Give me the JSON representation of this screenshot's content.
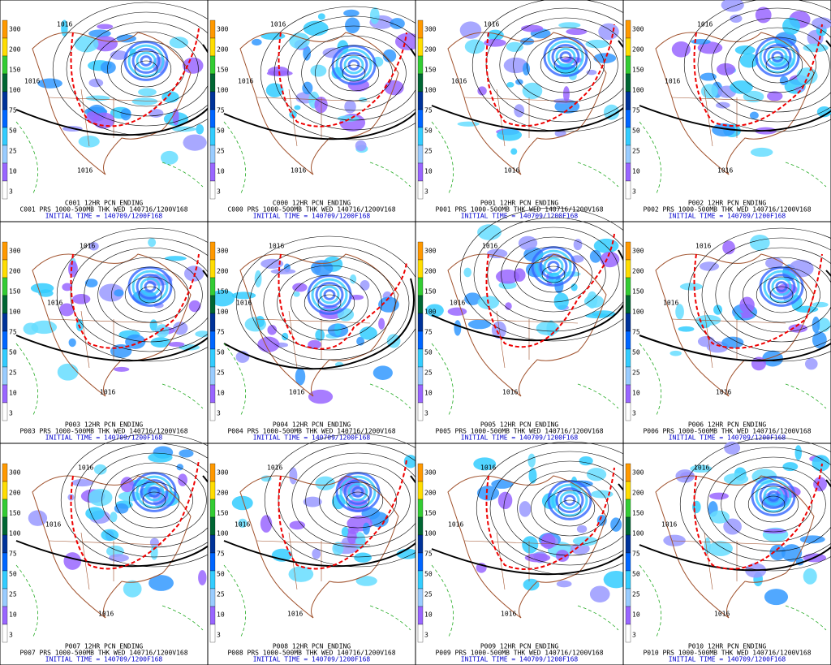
{
  "colorbar_labels": [
    "300",
    "200",
    "150",
    "100",
    "75",
    "50",
    "25",
    "10",
    "3"
  ],
  "panels": [
    {
      "title": "C001 12HR PCN ENDING",
      "line1": "C001 PRS 1000-500MB THK WED 140716/1200V168",
      "line2": "INITIAL TIME = 140709/1200F168",
      "labels": [
        "1016",
        "1016",
        "1016"
      ]
    },
    {
      "title": "C000 12HR PCN ENDING",
      "line1": "C000 PRS 1000-500MB THK WED 140716/1200V168",
      "line2": "INITIAL TIME = 140709/1200F168",
      "labels": [
        "1016",
        "1016",
        "1016"
      ]
    },
    {
      "title": "P001 12HR PCN ENDING",
      "line1": "P001 PRS 1000-500MB THK WED 140716/1200V168",
      "line2": "INITIAL TIME = 140709/1200F168",
      "labels": [
        "1016",
        "1016",
        "1016"
      ]
    },
    {
      "title": "P002 12HR PCN ENDING",
      "line1": "P002 PRS 1000-500MB THK WED 140716/1200V168",
      "line2": "INITIAL TIME = 140709/1200F168",
      "labels": [
        "1016",
        "1016",
        "1016"
      ]
    },
    {
      "title": "P003 12HR PCN ENDING",
      "line1": "P003 PRS 1000-500MB THK WED 140716/1200V168",
      "line2": "INITIAL TIME = 140709/1200F168",
      "labels": [
        "1016",
        "1016",
        "1016"
      ]
    },
    {
      "title": "P004 12HR PCN ENDING",
      "line1": "P004 PRS 1000-500MB THK WED 140716/1200V168",
      "line2": "INITIAL TIME = 140709/1200F168",
      "labels": [
        "1016",
        "1016",
        "1016"
      ]
    },
    {
      "title": "P005 12HR PCN ENDING",
      "line1": "P005 PRS 1000-500MB THK WED 140716/1200V168",
      "line2": "INITIAL TIME = 140709/1200F168",
      "labels": [
        "1016",
        "1016",
        "1016"
      ]
    },
    {
      "title": "P006 12HR PCN ENDING",
      "line1": "P006 PRS 1000-500MB THK WED 140716/1200V168",
      "line2": "INITIAL TIME = 140709/1200F168",
      "labels": [
        "1016",
        "1016",
        "1016"
      ]
    },
    {
      "title": "P007 12HR PCN ENDING",
      "line1": "P007 PRS 1000-500MB THK WED 140716/1200V168",
      "line2": "INITIAL TIME = 140709/1200F168",
      "labels": [
        "1016",
        "1016",
        "1016"
      ]
    },
    {
      "title": "P008 12HR PCN ENDING",
      "line1": "P008 PRS 1000-500MB THK WED 140716/1200V168",
      "line2": "INITIAL TIME = 140709/1200F168",
      "labels": [
        "1016",
        "1016",
        "1016"
      ]
    },
    {
      "title": "P009 12HR PCN ENDING",
      "line1": "P009 PRS 1000-500MB THK WED 140716/1200V168",
      "line2": "INITIAL TIME = 140709/1200F168",
      "labels": [
        "1016",
        "1016",
        "1016"
      ]
    },
    {
      "title": "P010 12HR PCN ENDING",
      "line1": "P010 PRS 1000-500MB THK WED 140716/1200V168",
      "line2": "INITIAL TIME = 140709/1200F168",
      "labels": [
        "1016",
        "1016",
        "1016"
      ]
    }
  ]
}
